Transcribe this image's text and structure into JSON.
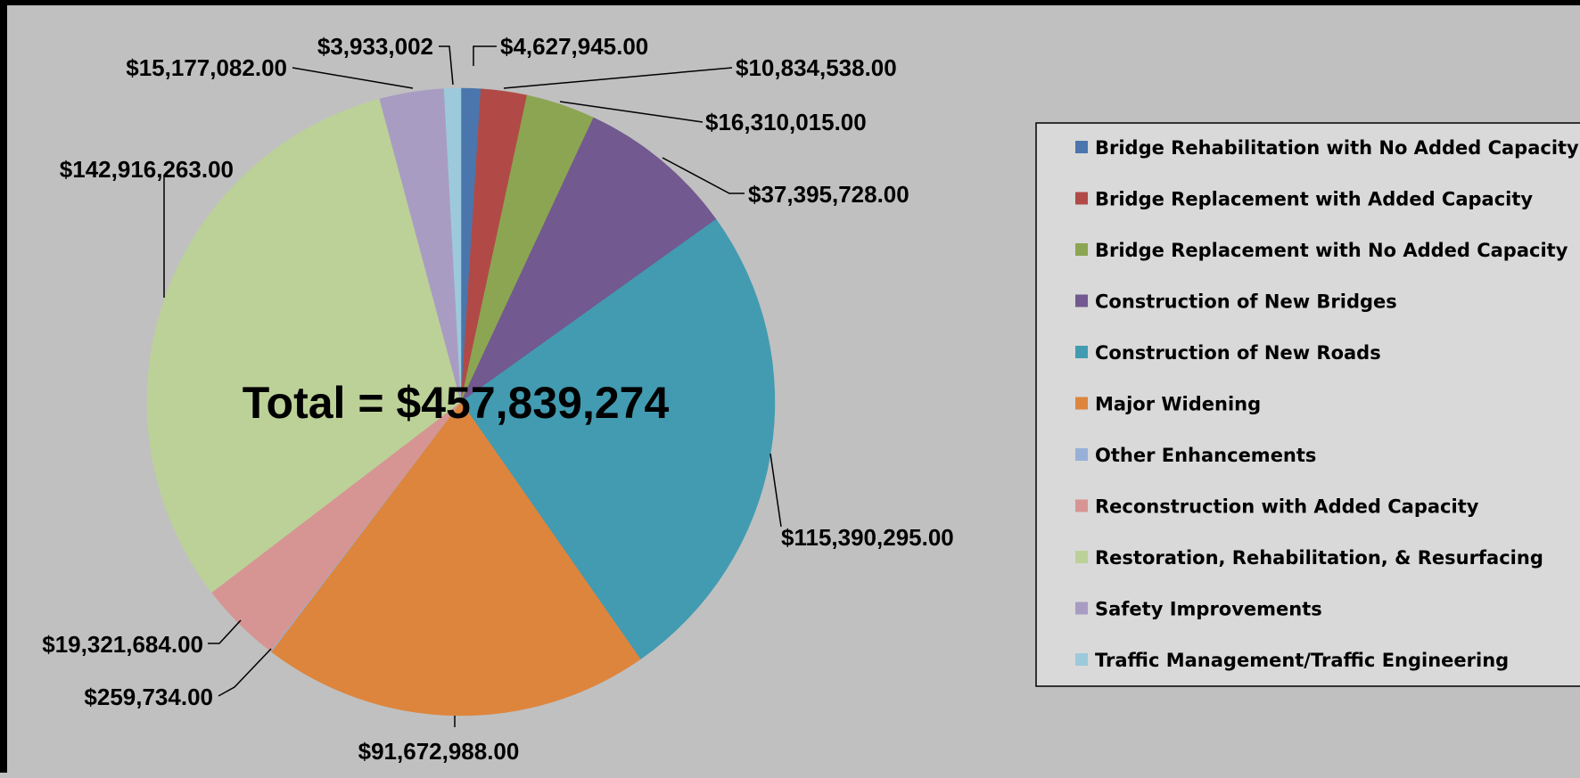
{
  "chart_data": {
    "type": "pie",
    "title": "",
    "total_label": "Total = $457,839,274",
    "legend_position": "right",
    "slices": [
      {
        "name": "Bridge Rehabilitation with No Added Capacity",
        "value": 4627945.0,
        "label": "$4,627,945.00",
        "color": "#4a76ad"
      },
      {
        "name": "Bridge  Replacement with Added Capacity",
        "value": 10834538.0,
        "label": "$10,834,538.00",
        "color": "#b14a47"
      },
      {
        "name": "Bridge  Replacement with No Added Capacity",
        "value": 16310015.0,
        "label": "$16,310,015.00",
        "color": "#8ca552"
      },
      {
        "name": "Construction of New Bridges",
        "value": 37395728.0,
        "label": "$37,395,728.00",
        "color": "#72598f"
      },
      {
        "name": "Construction of New Roads",
        "value": 115390295.0,
        "label": "$115,390,295.00",
        "color": "#429bb1"
      },
      {
        "name": "Major Widening",
        "value": 91672988.0,
        "label": "$91,672,988.00",
        "color": "#dd853d"
      },
      {
        "name": "Other Enhancements",
        "value": 259734.0,
        "label": "$259,734.00",
        "color": "#97b0d8"
      },
      {
        "name": "Reconstruction with Added Capacity",
        "value": 19321684.0,
        "label": "$19,321,684.00",
        "color": "#d69593"
      },
      {
        "name": "Restoration, Rehabilitation, & Resurfacing",
        "value": 142916263.0,
        "label": "$142,916,263.00",
        "color": "#bcd198"
      },
      {
        "name": "Safety Improvements",
        "value": 15177082.0,
        "label": "$15,177,082.00",
        "color": "#a99cc3"
      },
      {
        "name": "Traffic Management/Traffic Engineering",
        "value": 3933002,
        "label": "$3,933,002",
        "color": "#9ccadb"
      }
    ]
  }
}
